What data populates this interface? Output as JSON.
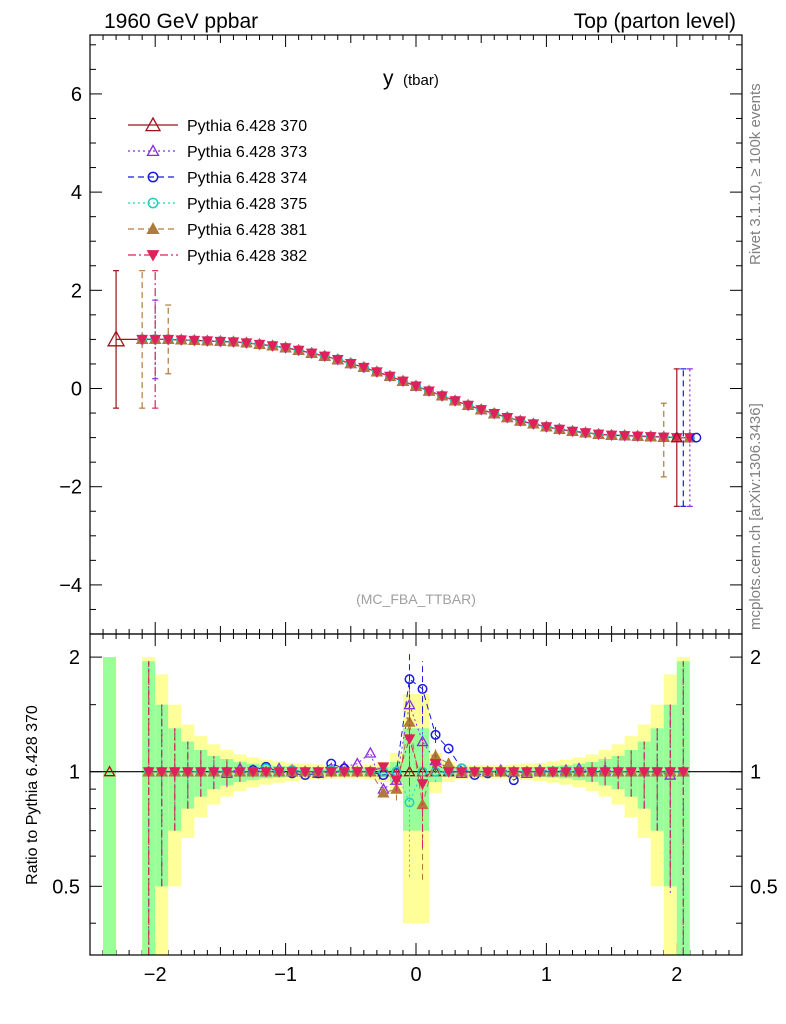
{
  "header": {
    "left": "1960 GeV ppbar",
    "right": "Top (parton level)"
  },
  "side_labels": {
    "rivet": "Rivet 3.1.10, ≥ 100k events",
    "mcplots": "mcplots.cern.ch [arXiv:1306.3436]"
  },
  "analysis_tag": "(MC_FBA_TTBAR)",
  "chart_data": [
    {
      "type": "line",
      "title": "y (tbar)",
      "title_main": "y",
      "title_sub": "(tbar)",
      "xlabel": "",
      "ylabel": "",
      "xlim": [
        -2.5,
        2.5
      ],
      "ylim": [
        -5,
        7.2
      ],
      "x_ticks": [
        -2,
        -1,
        0,
        1,
        2
      ],
      "x_tick_labels": [
        "−2",
        "−1",
        "0",
        "1",
        "2"
      ],
      "y_ticks": [
        -4,
        -2,
        0,
        2,
        4,
        6
      ],
      "y_tick_labels": [
        "−4",
        "−2",
        "0",
        "2",
        "4",
        "6"
      ],
      "legend_position": "top-left",
      "x": [
        -2.3,
        -2.1,
        -2.0,
        -1.9,
        -1.8,
        -1.7,
        -1.6,
        -1.5,
        -1.4,
        -1.3,
        -1.2,
        -1.1,
        -1.0,
        -0.9,
        -0.8,
        -0.7,
        -0.6,
        -0.5,
        -0.4,
        -0.3,
        -0.2,
        -0.1,
        0.0,
        0.1,
        0.2,
        0.3,
        0.4,
        0.5,
        0.6,
        0.7,
        0.8,
        0.9,
        1.0,
        1.1,
        1.2,
        1.3,
        1.4,
        1.5,
        1.6,
        1.7,
        1.8,
        1.9,
        2.0,
        2.1
      ],
      "series": [
        {
          "name": "Pythia 6.428 370",
          "color": "#a01018",
          "marker": "triangle-open",
          "dash": "solid",
          "values": [
            1.0,
            1.0,
            1.0,
            1.0,
            0.99,
            0.98,
            0.97,
            0.96,
            0.95,
            0.93,
            0.9,
            0.87,
            0.83,
            0.78,
            0.72,
            0.66,
            0.59,
            0.51,
            0.43,
            0.34,
            0.25,
            0.15,
            0.05,
            -0.05,
            -0.15,
            -0.25,
            -0.34,
            -0.43,
            -0.51,
            -0.59,
            -0.66,
            -0.72,
            -0.78,
            -0.83,
            -0.87,
            -0.9,
            -0.93,
            -0.95,
            -0.96,
            -0.97,
            -0.98,
            -0.99,
            -1.0,
            -1.0
          ]
        },
        {
          "name": "Pythia 6.428 373",
          "color": "#8a2be2",
          "marker": "triangle-open",
          "dash": "dotted",
          "values": [
            null,
            1.0,
            1.0,
            1.0,
            0.99,
            0.98,
            0.97,
            0.96,
            0.95,
            0.93,
            0.9,
            0.87,
            0.83,
            0.78,
            0.72,
            0.66,
            0.59,
            0.51,
            0.43,
            0.34,
            0.25,
            0.15,
            0.05,
            -0.05,
            -0.15,
            -0.25,
            -0.34,
            -0.43,
            -0.51,
            -0.59,
            -0.66,
            -0.72,
            -0.78,
            -0.83,
            -0.87,
            -0.9,
            -0.93,
            -0.95,
            -0.96,
            -0.97,
            -0.98,
            -0.99,
            -1.0,
            -1.0
          ]
        },
        {
          "name": "Pythia 6.428 374",
          "color": "#1a1ae0",
          "marker": "circle-open",
          "dash": "dashed",
          "values": [
            null,
            1.0,
            1.0,
            1.0,
            0.99,
            0.98,
            0.97,
            0.96,
            0.95,
            0.93,
            0.9,
            0.87,
            0.83,
            0.78,
            0.72,
            0.66,
            0.59,
            0.51,
            0.43,
            0.34,
            0.25,
            0.15,
            0.05,
            -0.05,
            -0.15,
            -0.25,
            -0.34,
            -0.43,
            -0.51,
            -0.59,
            -0.66,
            -0.72,
            -0.78,
            -0.83,
            -0.87,
            -0.9,
            -0.93,
            -0.95,
            -0.96,
            -0.97,
            -0.98,
            -0.99,
            -1.0,
            -1.0
          ]
        },
        {
          "name": "Pythia 6.428 375",
          "color": "#20d0c0",
          "marker": "circle-open",
          "dash": "dotted",
          "values": [
            null,
            1.0,
            1.0,
            1.0,
            0.99,
            0.98,
            0.97,
            0.96,
            0.95,
            0.93,
            0.9,
            0.87,
            0.83,
            0.78,
            0.72,
            0.66,
            0.59,
            0.51,
            0.43,
            0.34,
            0.25,
            0.15,
            0.05,
            -0.05,
            -0.15,
            -0.25,
            -0.34,
            -0.43,
            -0.51,
            -0.59,
            -0.66,
            -0.72,
            -0.78,
            -0.83,
            -0.87,
            -0.9,
            -0.93,
            -0.95,
            -0.96,
            -0.97,
            -0.98,
            -0.99,
            -1.0,
            -1.0
          ]
        },
        {
          "name": "Pythia 6.428 381",
          "color": "#b07a3a",
          "marker": "triangle-filled",
          "dash": "dashed",
          "values": [
            null,
            1.0,
            1.0,
            1.0,
            0.99,
            0.98,
            0.97,
            0.96,
            0.95,
            0.93,
            0.9,
            0.87,
            0.83,
            0.78,
            0.72,
            0.66,
            0.59,
            0.51,
            0.43,
            0.34,
            0.25,
            0.15,
            0.05,
            -0.05,
            -0.15,
            -0.25,
            -0.34,
            -0.43,
            -0.51,
            -0.59,
            -0.66,
            -0.72,
            -0.78,
            -0.83,
            -0.87,
            -0.9,
            -0.93,
            -0.95,
            -0.96,
            -0.97,
            -0.98,
            -0.99,
            -1.0,
            -1.0
          ]
        },
        {
          "name": "Pythia 6.428 382",
          "color": "#e0205a",
          "marker": "triangle-down-filled",
          "dash": "dashdot",
          "values": [
            null,
            1.0,
            1.0,
            1.0,
            0.99,
            0.98,
            0.97,
            0.96,
            0.95,
            0.93,
            0.9,
            0.87,
            0.83,
            0.78,
            0.72,
            0.66,
            0.59,
            0.51,
            0.43,
            0.34,
            0.25,
            0.15,
            0.05,
            -0.05,
            -0.15,
            -0.25,
            -0.34,
            -0.43,
            -0.51,
            -0.59,
            -0.66,
            -0.72,
            -0.78,
            -0.83,
            -0.87,
            -0.9,
            -0.93,
            -0.95,
            -0.96,
            -0.97,
            -0.98,
            -0.99,
            -1.0,
            -1.0
          ]
        }
      ]
    },
    {
      "type": "line",
      "title": "",
      "ylabel": "Ratio to Pythia 6.428 370",
      "xlim": [
        -2.5,
        2.5
      ],
      "ylim": [
        0.33,
        2.3
      ],
      "y_scale": "log",
      "y_ticks": [
        0.5,
        1,
        2
      ],
      "y_tick_labels": [
        "0.5",
        "1",
        "2"
      ],
      "x_ticks": [
        -2,
        -1,
        0,
        1,
        2
      ],
      "x_tick_labels": [
        "−2",
        "−1",
        "0",
        "1",
        "2"
      ],
      "reference_line": 1,
      "band_x": [
        -2.35,
        -2.05,
        -1.95,
        -1.85,
        -1.75,
        -1.65,
        -1.55,
        -1.45,
        -1.35,
        -1.25,
        -1.15,
        -1.05,
        -0.95,
        -0.85,
        -0.75,
        -0.65,
        -0.55,
        -0.45,
        -0.35,
        -0.25,
        -0.15,
        -0.05,
        0.05,
        0.15,
        0.25,
        0.35,
        0.45,
        0.55,
        0.65,
        0.75,
        0.85,
        0.95,
        1.05,
        1.15,
        1.25,
        1.35,
        1.45,
        1.55,
        1.65,
        1.75,
        1.85,
        1.95,
        2.05
      ],
      "band_green_halfwidth": [
        1.0,
        0.95,
        0.5,
        0.3,
        0.2,
        0.14,
        0.1,
        0.08,
        0.06,
        0.05,
        0.04,
        0.035,
        0.03,
        0.025,
        0.02,
        0.02,
        0.02,
        0.02,
        0.025,
        0.03,
        0.06,
        0.3,
        0.3,
        0.06,
        0.03,
        0.025,
        0.02,
        0.02,
        0.02,
        0.02,
        0.025,
        0.03,
        0.035,
        0.04,
        0.05,
        0.06,
        0.08,
        0.1,
        0.14,
        0.2,
        0.3,
        0.5,
        0.95
      ],
      "band_yellow_halfwidth": [
        1.0,
        1.0,
        0.8,
        0.5,
        0.33,
        0.24,
        0.18,
        0.14,
        0.11,
        0.09,
        0.075,
        0.065,
        0.055,
        0.05,
        0.045,
        0.04,
        0.04,
        0.04,
        0.045,
        0.06,
        0.12,
        0.6,
        0.6,
        0.12,
        0.06,
        0.045,
        0.04,
        0.04,
        0.04,
        0.045,
        0.05,
        0.055,
        0.065,
        0.075,
        0.09,
        0.11,
        0.14,
        0.18,
        0.24,
        0.33,
        0.5,
        0.8,
        1.0
      ],
      "series": [
        {
          "name": "Pythia 6.428 370",
          "values": [
            1,
            1,
            1,
            1,
            1,
            1,
            1,
            1,
            1,
            1,
            1,
            1,
            1,
            1,
            1,
            1,
            1,
            1,
            1,
            1,
            1,
            1,
            1,
            1,
            1,
            1,
            1,
            1,
            1,
            1,
            1,
            1,
            1,
            1,
            1,
            1,
            1,
            1,
            1,
            1,
            1,
            1,
            1
          ]
        },
        {
          "name": "Pythia 6.428 373",
          "values": [
            null,
            1.0,
            1.0,
            1.0,
            1.0,
            1.0,
            1.0,
            0.99,
            1.02,
            1.01,
            1.0,
            1.02,
            1.01,
            1.0,
            0.99,
            1.02,
            1.03,
            1.05,
            1.12,
            0.9,
            0.95,
            1.5,
            1.2,
            1.07,
            1.02,
            0.99,
            1.0,
            1.0,
            1.01,
            1.0,
            0.99,
            1.01,
            1.0,
            1.01,
            1.02,
            1.0,
            1.01,
            1.0,
            1.0,
            1.0,
            1.0,
            0.98,
            1.0
          ]
        },
        {
          "name": "Pythia 6.428 374",
          "values": [
            null,
            1.0,
            1.0,
            1.0,
            1.0,
            1.0,
            1.0,
            1.0,
            1.0,
            1.01,
            1.03,
            1.0,
            0.99,
            0.98,
            0.99,
            1.05,
            1.02,
            1.0,
            1.0,
            0.98,
            1.0,
            1.75,
            1.65,
            1.25,
            1.15,
            1.02,
            0.98,
            0.99,
            1.0,
            0.95,
            1.0,
            1.0,
            1.0,
            1.0,
            1.0,
            1.0,
            1.0,
            1.0,
            1.0,
            1.0,
            1.0,
            1.0,
            1.0
          ]
        },
        {
          "name": "Pythia 6.428 375",
          "values": [
            null,
            1.0,
            1.0,
            1.0,
            1.0,
            1.0,
            1.0,
            1.0,
            1.0,
            1.0,
            1.02,
            1.0,
            1.01,
            1.0,
            1.0,
            1.01,
            1.0,
            1.0,
            1.0,
            1.0,
            1.0,
            0.83,
            1.0,
            1.0,
            1.0,
            1.02,
            1.0,
            1.0,
            1.0,
            1.0,
            1.0,
            1.0,
            1.0,
            1.0,
            1.0,
            1.0,
            1.0,
            1.0,
            1.0,
            1.0,
            1.0,
            1.0,
            1.0
          ]
        },
        {
          "name": "Pythia 6.428 381",
          "values": [
            null,
            1.0,
            1.0,
            1.0,
            1.0,
            1.0,
            1.0,
            1.0,
            1.0,
            1.0,
            1.0,
            1.0,
            1.0,
            1.0,
            1.0,
            1.0,
            1.0,
            1.0,
            1.0,
            0.88,
            0.9,
            1.35,
            0.82,
            1.1,
            1.05,
            1.0,
            1.0,
            1.0,
            1.0,
            1.0,
            1.0,
            1.0,
            1.0,
            1.0,
            1.0,
            1.0,
            1.0,
            1.0,
            1.0,
            1.0,
            1.0,
            1.0,
            1.0
          ]
        },
        {
          "name": "Pythia 6.428 382",
          "values": [
            null,
            1.0,
            1.0,
            1.0,
            1.0,
            1.0,
            1.0,
            1.0,
            1.0,
            1.0,
            1.0,
            1.0,
            1.0,
            1.0,
            1.0,
            1.0,
            1.0,
            1.0,
            1.0,
            1.03,
            0.95,
            1.22,
            0.93,
            1.05,
            1.0,
            1.0,
            1.0,
            1.0,
            1.0,
            1.0,
            1.0,
            1.0,
            1.0,
            1.0,
            1.0,
            1.0,
            1.0,
            1.0,
            1.0,
            1.0,
            1.0,
            1.0,
            1.0
          ]
        }
      ]
    }
  ]
}
